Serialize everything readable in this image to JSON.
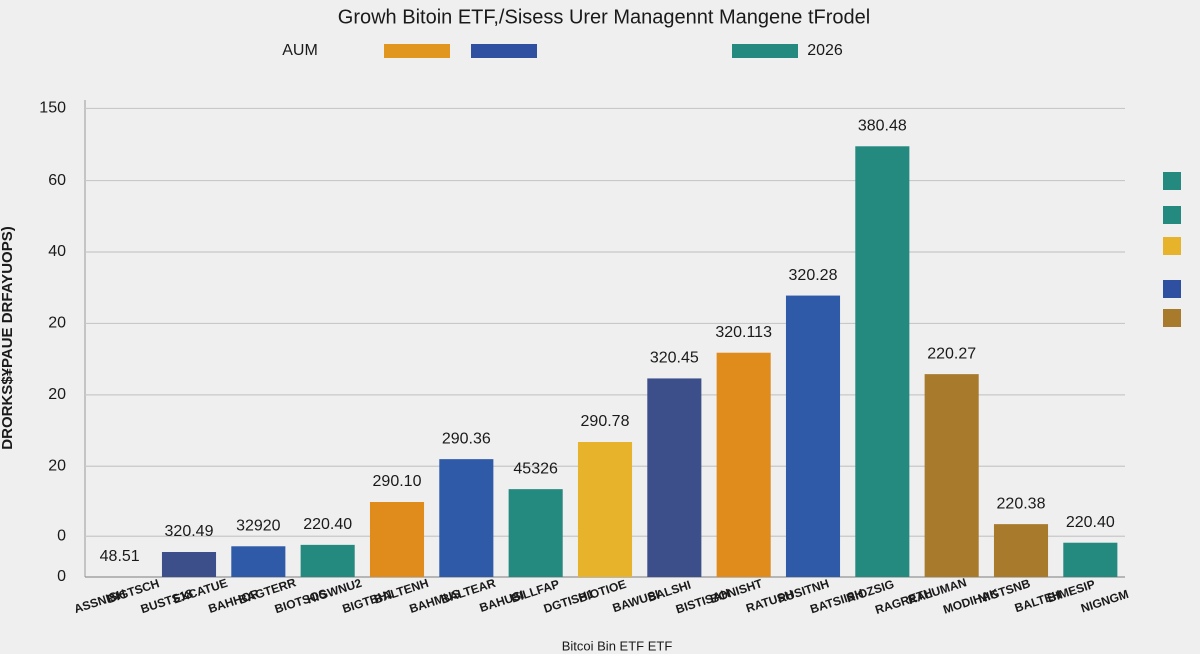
{
  "chart_data": {
    "type": "bar",
    "title": "Growh Bitoin ETF,/Sisess Urer Managennt Mangene tFrodel",
    "y_label": "DRORKS$¥PAUE DRFAYUOPS)",
    "x_label": "Bitcoi Bin ETF ETF",
    "legend": {
      "left_text": "AUM",
      "right_text": "2026",
      "colors": [
        "#e0961f",
        "#2f4fa0",
        "#24897f"
      ]
    },
    "categories": [
      null,
      null,
      null,
      null,
      null,
      null,
      null,
      null,
      null,
      null,
      null,
      null,
      null,
      null,
      null
    ],
    "values": [
      0,
      0.35,
      0.43,
      0.45,
      1.05,
      1.65,
      1.23,
      1.89,
      2.78,
      3.14,
      3.94,
      6.03,
      2.84,
      0.74,
      0.48
    ],
    "colors": [
      "#3d4f8a",
      "#3d4f8a",
      "#2f5aa8",
      "#24897f",
      "#e08c1c",
      "#2f5aa8",
      "#24897f",
      "#e6b32a",
      "#3d4f8a",
      "#e08c1c",
      "#2f5aa8",
      "#24897f",
      "#a87a2c",
      "#a87a2c",
      "#24897f"
    ],
    "annotations": [
      "48.51",
      "320.49",
      "32920",
      "220.40",
      "290.10",
      "290.36",
      "45326",
      "290.78",
      "320.45",
      "320.113",
      "320.28",
      "380.48",
      "220.27",
      "220.38",
      "220.40"
    ],
    "tick_labels": [
      "ASSNISH",
      "BIGTSCH",
      "BUSTS18",
      "EXCATUE",
      "BAHHOR",
      "BAGTERR",
      "BIOTSOS",
      "HIGWNU2",
      "BIGTBH1",
      "BALTENH",
      "BAHMUS",
      "BALTEAR",
      "BAHUSI",
      "BILLFAP",
      "DGTISH1",
      "BIOTIOE",
      "BAWUSI",
      "BALSHI",
      "BISTISAH",
      "BONISHT",
      "RATUSH",
      "RUSITNH",
      "BATSIISH",
      "RIOZSIG",
      "RAGRETH",
      "RALUMAN",
      "MODIHAK",
      "NIGTSNB",
      "BALTEH",
      "BIMESIP",
      "NIGNGM"
    ],
    "ylim": [
      0,
      7
    ],
    "yticks": [
      0,
      {
        "value": 0.57,
        "label": "0"
      },
      {
        "value": 1.55,
        "label": "20"
      },
      {
        "value": 2.55,
        "label": "20"
      },
      {
        "value": 3.55,
        "label": "20"
      },
      {
        "value": 4.55,
        "label": "40"
      },
      {
        "value": 5.55,
        "label": "60"
      },
      {
        "value": 6.56,
        "label": "150"
      }
    ],
    "grid": true
  }
}
